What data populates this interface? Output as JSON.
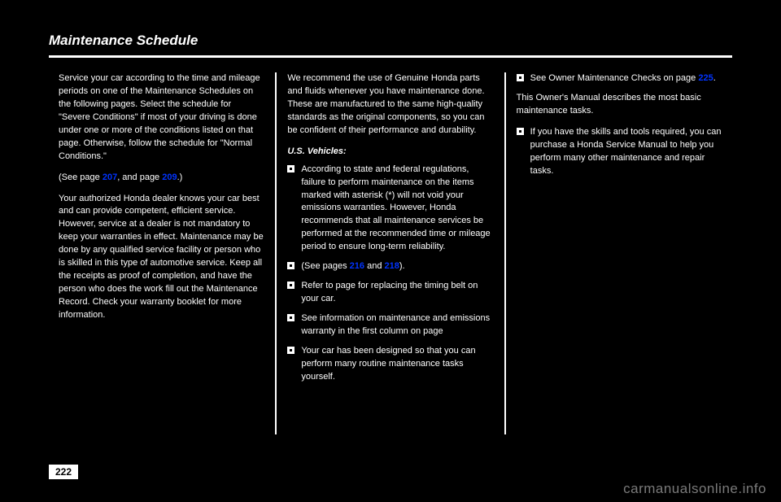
{
  "title": "Maintenance Schedule",
  "pageNumber": "222",
  "watermark": "carmanualsonline.info",
  "col1": {
    "p1a": "Service your car according to the time and mileage periods on one of the Maintenance Schedules on the following pages. Select the schedule for \"Severe Conditions\" if most of your driving is done under one or more of the conditions listed on that page. Otherwise, follow the schedule for \"Normal Conditions.\"",
    "p2a": "Your authorized Honda dealer knows your car best and can provide competent, efficient service. However, service at a dealer is not mandatory to keep your warranties in effect. Maintenance may be done by any qualified service facility or person who is skilled in this type of automotive service. Keep all the receipts as proof of completion, and have the person who does the work fill out the Maintenance Record. Check your warranty booklet for more information.",
    "link1": "207",
    "link2": "209"
  },
  "col2": {
    "p1": "We recommend the use of Genuine Honda parts and fluids whenever you have maintenance done. These are manufactured to the same high-quality standards as the original components, so you can be confident of their performance and durability.",
    "subhead": "U.S. Vehicles:",
    "b1": "According to state and federal regulations, failure to perform maintenance on the items marked with asterisk (*) will not void your emissions warranties. However, Honda recommends that all maintenance services be performed at the recommended time or mileage period to ensure long-term reliability.",
    "b2a": "and",
    "b2b": ").",
    "link3": "216",
    "link4": "218",
    "b3": "Refer to page for replacing the timing belt on your car.",
    "b4": "See information on maintenance and emissions warranty in the first column on page",
    "b5": "Your car has been designed so that you can perform many routine maintenance tasks yourself."
  },
  "col3": {
    "b1a": "See Owner Maintenance Checks on page",
    "b1b": ".",
    "link5": "225",
    "p2": "This Owner's Manual describes the most basic maintenance tasks.",
    "b2": "If you have the skills and tools required, you can purchase a Honda Service Manual to help you perform many other maintenance and repair tasks."
  }
}
